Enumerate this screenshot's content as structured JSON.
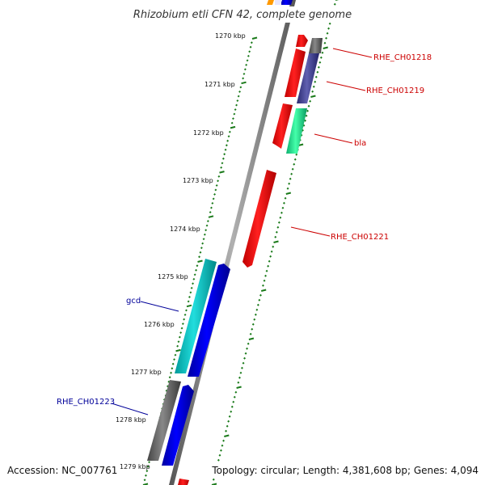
{
  "title": "Rhizobium etli CFN 42, complete genome",
  "footer": {
    "accession": "Accession: NC_007761",
    "summary": "Topology: circular; Length: 4,381,608 bp; Genes: 4,094"
  },
  "ticks": [
    "1270 kbp",
    "1271 kbp",
    "1272 kbp",
    "1273 kbp",
    "1274 kbp",
    "1275 kbp",
    "1276 kbp",
    "1277 kbp",
    "1278 kbp",
    "1279 kbp"
  ],
  "genes": [
    {
      "label": "RHE_CH01218",
      "color": "#cc0000"
    },
    {
      "label": "RHE_CH01219",
      "color": "#cc0000"
    },
    {
      "label": "bla",
      "color": "#cc0000"
    },
    {
      "label": "RHE_CH01221",
      "color": "#cc0000"
    },
    {
      "label": "gcd",
      "color": "#000099"
    },
    {
      "label": "RHE_CH01223",
      "color": "#000099"
    }
  ],
  "colors": {
    "backbone": "#8a8a8a",
    "tick": "#1a7a1a",
    "forward_cds": "#ff0000",
    "cyan_cds": "#00c8c8",
    "blue_cds": "#0000ee",
    "grey_cds": "#666666",
    "slate_cds": "#4a4a99",
    "teal_cds": "#22ee99"
  }
}
